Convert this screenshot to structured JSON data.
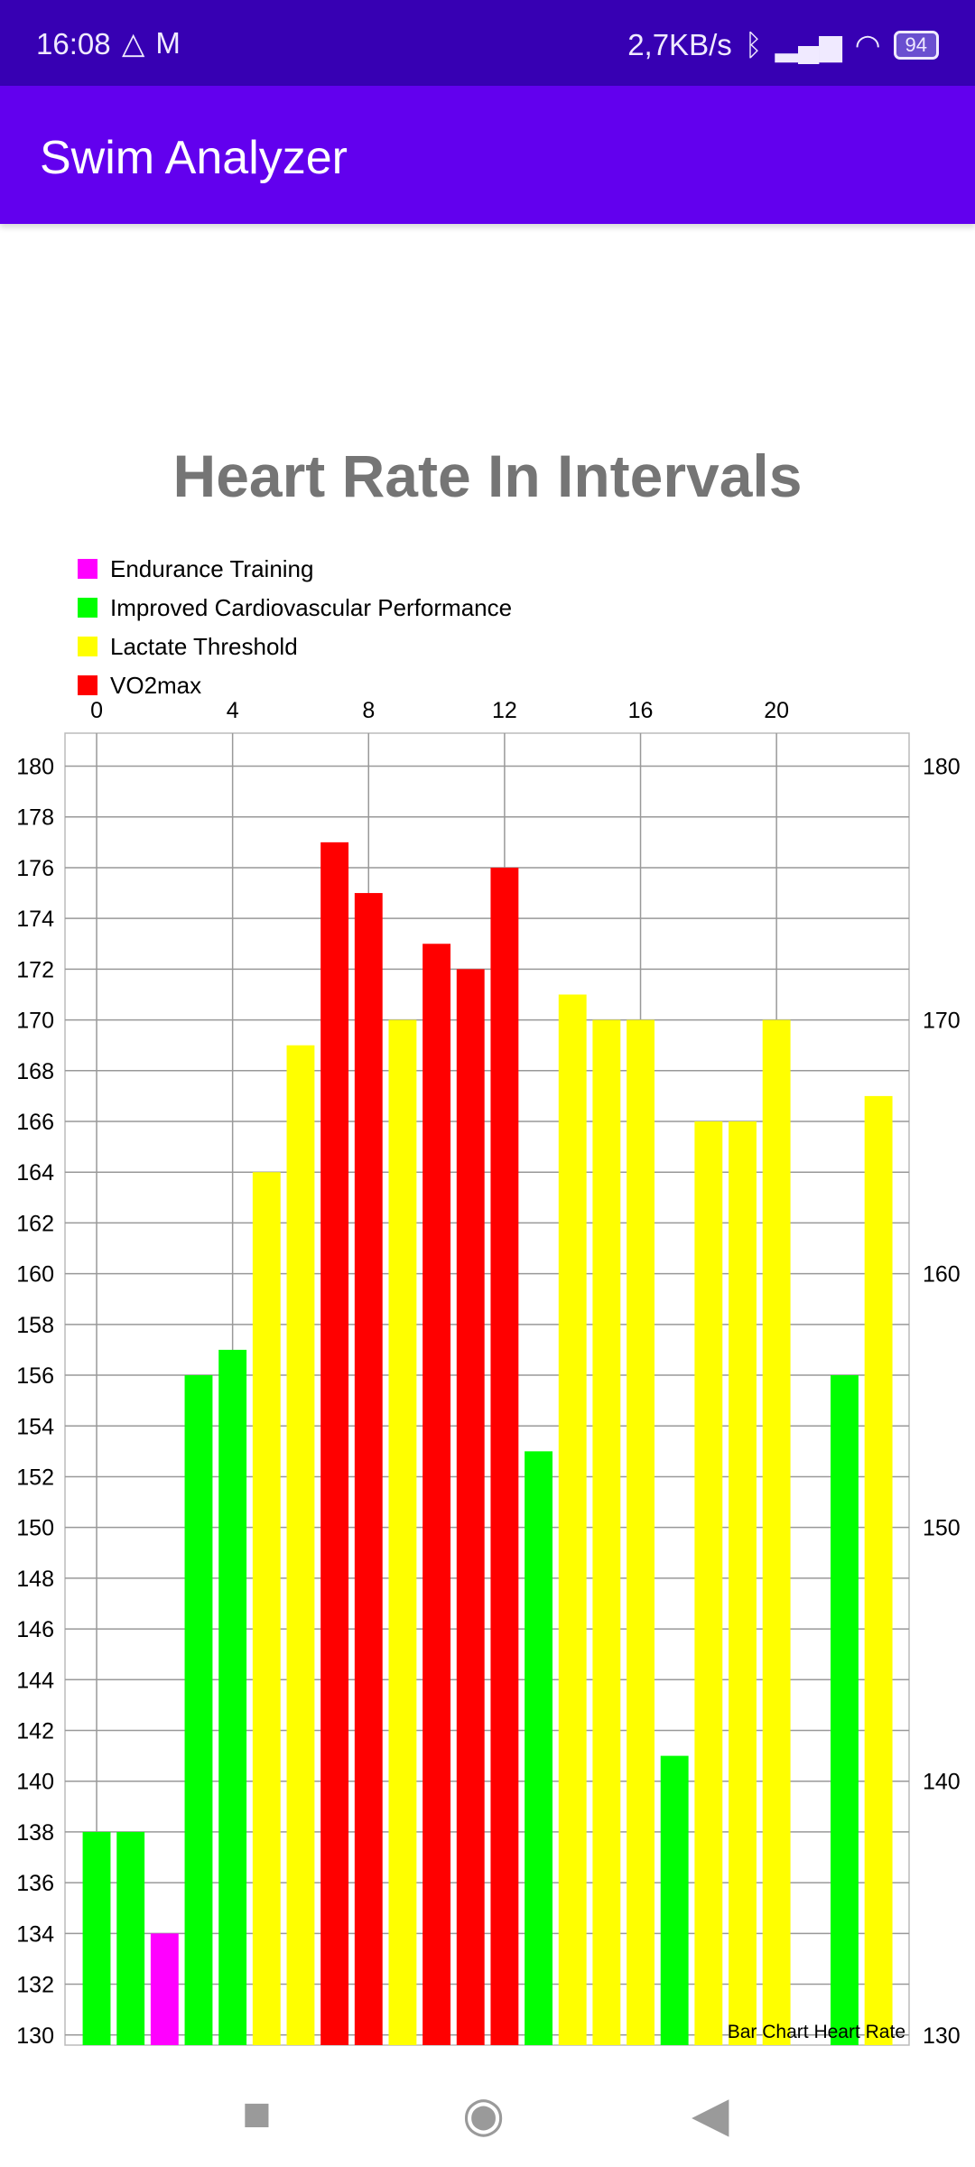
{
  "status_bar": {
    "time": "16:08",
    "network_speed": "2,7KB/s",
    "battery": "94",
    "icons": [
      "drive-icon",
      "gmail-icon",
      "bluetooth-icon",
      "signal-icon",
      "wifi-icon",
      "battery-icon"
    ]
  },
  "app_bar": {
    "title": "Swim Analyzer"
  },
  "chart_data": {
    "type": "bar",
    "title": "Heart Rate In Intervals",
    "description_label": "Bar Chart Heart Rate",
    "legend_position": "top-left",
    "legend": [
      {
        "label": "Endurance Training",
        "color": "#ff00ff"
      },
      {
        "label": "Improved Cardiovascular Performance",
        "color": "#00ff00"
      },
      {
        "label": "Lactate Threshold",
        "color": "#ffff00"
      },
      {
        "label": "VO2max",
        "color": "#ff0000"
      }
    ],
    "x": [
      0,
      1,
      2,
      3,
      4,
      5,
      6,
      7,
      8,
      9,
      10,
      11,
      12,
      13,
      14,
      15,
      16,
      17,
      18,
      19,
      20,
      22,
      23
    ],
    "values": [
      138,
      138,
      134,
      156,
      157,
      164,
      169,
      177,
      175,
      170,
      173,
      172,
      176,
      153,
      171,
      170,
      170,
      141,
      166,
      166,
      170,
      156,
      167
    ],
    "zones": [
      1,
      1,
      0,
      1,
      1,
      2,
      2,
      3,
      3,
      2,
      3,
      3,
      3,
      1,
      2,
      2,
      2,
      1,
      2,
      2,
      2,
      1,
      2
    ],
    "xlim": [
      -0.93,
      23.9
    ],
    "ylim": [
      129.6,
      181.3
    ],
    "x_ticks": [
      "0",
      "4",
      "8",
      "12",
      "16",
      "20"
    ],
    "y_left_ticks": [
      "130",
      "132",
      "134",
      "136",
      "138",
      "140",
      "142",
      "144",
      "146",
      "148",
      "150",
      "152",
      "154",
      "156",
      "158",
      "160",
      "162",
      "164",
      "166",
      "168",
      "170",
      "172",
      "174",
      "176",
      "178",
      "180"
    ],
    "y_right_ticks": [
      "130",
      "140",
      "150",
      "160",
      "170",
      "180"
    ],
    "grid": true
  },
  "nav": {
    "recents": "■",
    "home": "◉",
    "back": "◀"
  }
}
